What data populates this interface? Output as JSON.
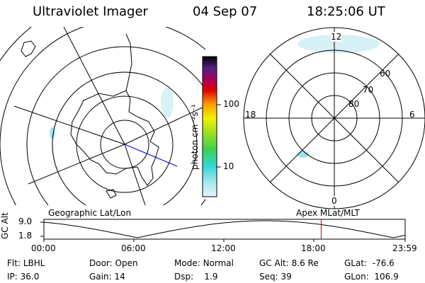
{
  "header": {
    "instrument": "Ultraviolet Imager",
    "date": "04 Sep 07",
    "time": "18:25:06 UT"
  },
  "left_panel": {
    "caption": "Geographic Lat/Lon"
  },
  "right_panel": {
    "caption": "Apex MLat/MLT",
    "mlt_labels": {
      "top": "12",
      "left": "18",
      "right": "6",
      "bottom": "0"
    },
    "mlat_labels": [
      "60",
      "70",
      "80"
    ]
  },
  "colorbar": {
    "unit_label": "photon cm⁻²s⁻¹",
    "ticks": [
      "100",
      "10"
    ]
  },
  "timeline": {
    "axis_label": "GC Alt",
    "y_ticks": [
      "9.0",
      "1.8"
    ],
    "x_ticks": [
      "00:00",
      "06:00",
      "12:00",
      "18:00",
      "23:59"
    ],
    "current_time_marker_hours": 18.42,
    "colors": {
      "marker": "#c00000"
    }
  },
  "status": {
    "row1": [
      {
        "key": "Flt:",
        "value": "LBHL"
      },
      {
        "key": "Door:",
        "value": "Open"
      },
      {
        "key": "Mode:",
        "value": "Normal"
      },
      {
        "key": "GC Alt:",
        "value": "8.6 Re"
      },
      {
        "key": "GLat:",
        "value": "-76.6"
      }
    ],
    "row2": [
      {
        "key": "IP:",
        "value": "36.0"
      },
      {
        "key": "Gain:",
        "value": "14"
      },
      {
        "key": "Dsp:",
        "value": "1.9"
      },
      {
        "key": "Seq:",
        "value": "39"
      },
      {
        "key": "GLon:",
        "value": "106.9"
      }
    ]
  }
}
